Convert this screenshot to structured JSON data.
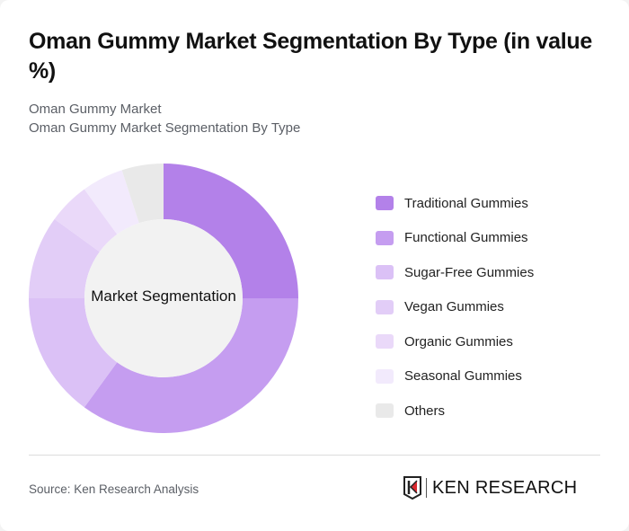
{
  "header": {
    "title": "Oman Gummy Market Segmentation By Type (in value %)",
    "subtitle_1": "Oman Gummy Market",
    "subtitle_2": "Oman Gummy Market Segmentation By Type"
  },
  "chart_data": {
    "type": "pie",
    "variant": "donut",
    "title": "Oman Gummy Market Segmentation By Type (in value %)",
    "center_label": "Market Segmentation",
    "categories": [
      "Traditional Gummies",
      "Functional Gummies",
      "Sugar-Free Gummies",
      "Vegan Gummies",
      "Organic Gummies",
      "Seasonal Gummies",
      "Others"
    ],
    "values": [
      25,
      35,
      15,
      10,
      5,
      5,
      5
    ],
    "colors": [
      "#b381e9",
      "#c59df0",
      "#dbc1f6",
      "#e2cdf7",
      "#ead9f9",
      "#f2eafc",
      "#e9e9e9"
    ],
    "legend_position": "right",
    "start_angle": "top, clockwise"
  },
  "legend": {
    "items": [
      {
        "label": "Traditional Gummies",
        "color": "#b381e9"
      },
      {
        "label": "Functional Gummies",
        "color": "#c59df0"
      },
      {
        "label": "Sugar-Free Gummies",
        "color": "#dbc1f6"
      },
      {
        "label": "Vegan Gummies",
        "color": "#e2cdf7"
      },
      {
        "label": "Organic Gummies",
        "color": "#ead9f9"
      },
      {
        "label": "Seasonal Gummies",
        "color": "#f2eafc"
      },
      {
        "label": "Others",
        "color": "#e9e9e9"
      }
    ]
  },
  "footer": {
    "source": "Source: Ken Research Analysis",
    "logo_text": "KEN RESEARCH"
  }
}
